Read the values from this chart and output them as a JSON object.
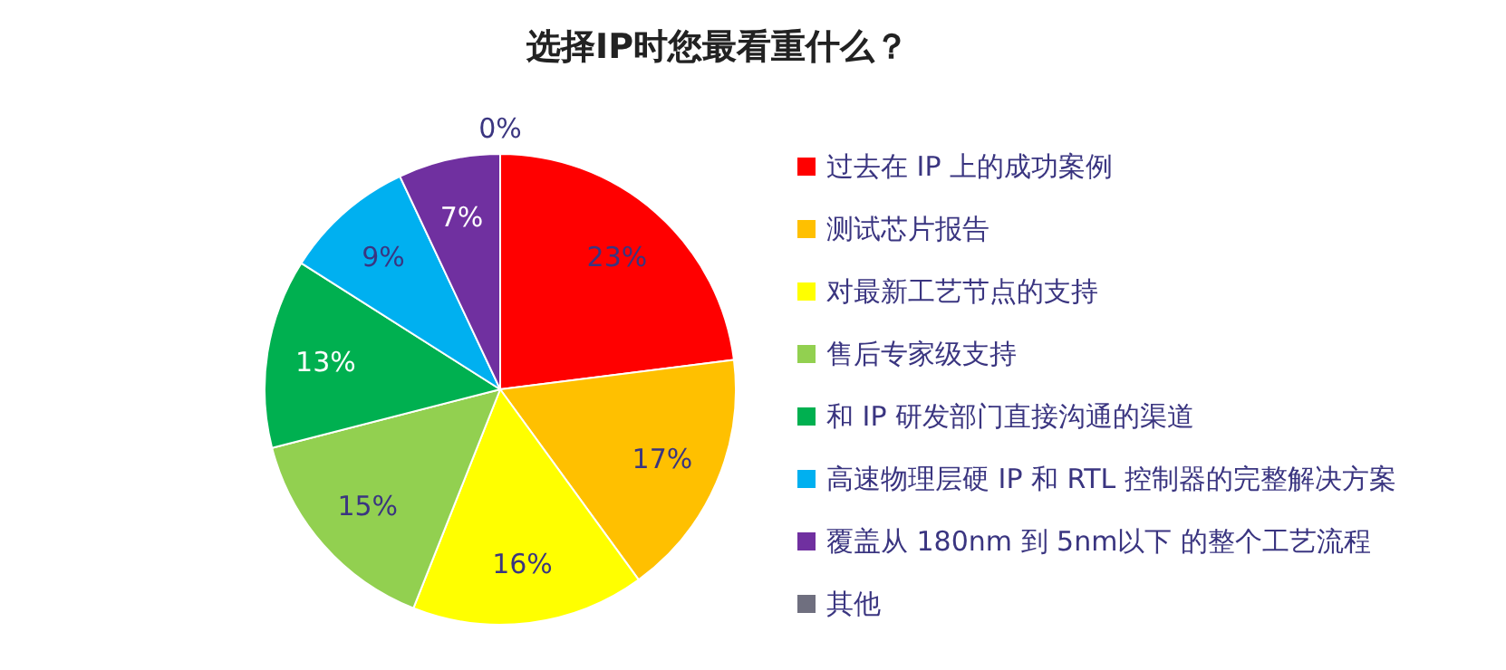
{
  "chart_data": {
    "type": "pie",
    "title": "选择IP时您最看重什么？",
    "categories": [
      "过去在 IP 上的成功案例",
      "测试芯片报告",
      "对最新工艺节点的支持",
      "售后专家级支持",
      "和 IP 研发部门直接沟通的渠道",
      "高速物理层硬 IP 和 RTL 控制器的完整解决方案",
      "覆盖从 180nm 到 5nm以下 的整个工艺流程",
      "其他"
    ],
    "values": [
      23,
      17,
      16,
      15,
      13,
      9,
      7,
      0
    ],
    "colors": [
      "#ff0000",
      "#ffc000",
      "#ffff00",
      "#92d050",
      "#00b050",
      "#00b0f0",
      "#7030a0",
      "#6f6f7f"
    ],
    "value_labels": [
      "23%",
      "17%",
      "16%",
      "15%",
      "13%",
      "9%",
      "7%",
      "0%"
    ],
    "legend": "right"
  }
}
